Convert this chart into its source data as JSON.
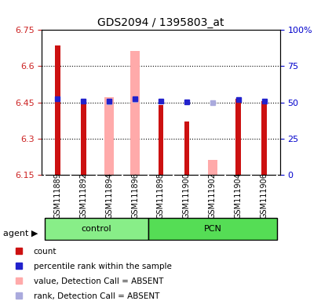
{
  "title": "GDS2094 / 1395803_at",
  "samples": [
    "GSM111889",
    "GSM111892",
    "GSM111894",
    "GSM111896",
    "GSM111898",
    "GSM111900",
    "GSM111902",
    "GSM111904",
    "GSM111906"
  ],
  "groups": [
    "control",
    "control",
    "control",
    "control",
    "PCN",
    "PCN",
    "PCN",
    "PCN",
    "PCN"
  ],
  "ylim": [
    6.15,
    6.75
  ],
  "yticks_left": [
    6.15,
    6.3,
    6.45,
    6.6,
    6.75
  ],
  "yticks_right": [
    0,
    25,
    50,
    75,
    100
  ],
  "bar_bottom": 6.15,
  "red_values": [
    6.685,
    6.46,
    null,
    null,
    6.44,
    6.37,
    null,
    6.465,
    6.455
  ],
  "pink_values": [
    null,
    null,
    6.47,
    6.665,
    null,
    null,
    6.21,
    null,
    null
  ],
  "blue_values": [
    6.465,
    6.455,
    6.455,
    6.465,
    6.455,
    6.452,
    null,
    6.462,
    6.454
  ],
  "lavender_values": [
    null,
    null,
    6.452,
    6.462,
    null,
    null,
    6.448,
    null,
    null
  ],
  "red_color": "#cc1111",
  "pink_color": "#ffaaaa",
  "blue_color": "#2222cc",
  "lavender_color": "#aaaadd",
  "group_control_color": "#88ee88",
  "group_pcn_color": "#55dd55",
  "grid_color": "#000000",
  "bg_color": "#f0f0f0",
  "plot_bg": "#ffffff",
  "group_label_control": "control",
  "group_label_pcn": "PCN",
  "legend_items": [
    "count",
    "percentile rank within the sample",
    "value, Detection Call = ABSENT",
    "rank, Detection Call = ABSENT"
  ],
  "legend_colors": [
    "#cc1111",
    "#2222cc",
    "#ffaaaa",
    "#aaaadd"
  ]
}
